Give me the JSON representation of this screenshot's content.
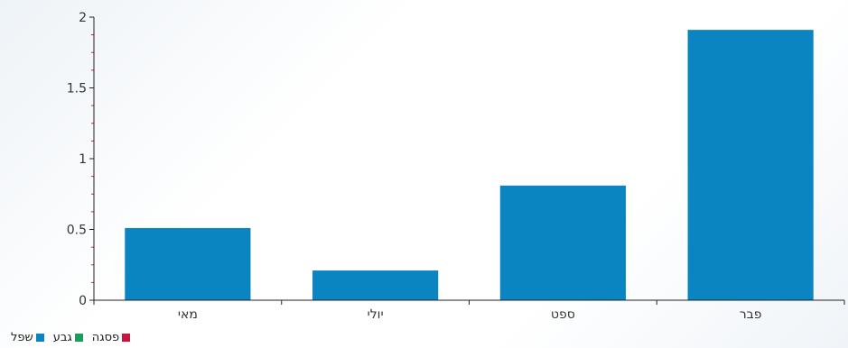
{
  "chart_data": {
    "type": "bar",
    "categories": [
      "מאי",
      "יולי",
      "ספט",
      "פבר"
    ],
    "values": [
      0.51,
      0.21,
      0.81,
      1.91
    ],
    "ylim": [
      0,
      2
    ],
    "yticks": [
      0,
      0.5,
      1,
      1.5,
      2
    ],
    "ytick_labels": [
      "0",
      "0.5",
      "1",
      "1.5",
      "2"
    ],
    "title": "",
    "xlabel": "",
    "ylabel": "",
    "grid": false,
    "bar_color": "#0a85c2",
    "legend_position": "bottom-left",
    "legend": [
      {
        "name": "שפל",
        "color": "#0a85c2"
      },
      {
        "name": "גבע",
        "color": "#1a9e5c"
      },
      {
        "name": "פסגה",
        "color": "#c8163c"
      }
    ]
  }
}
